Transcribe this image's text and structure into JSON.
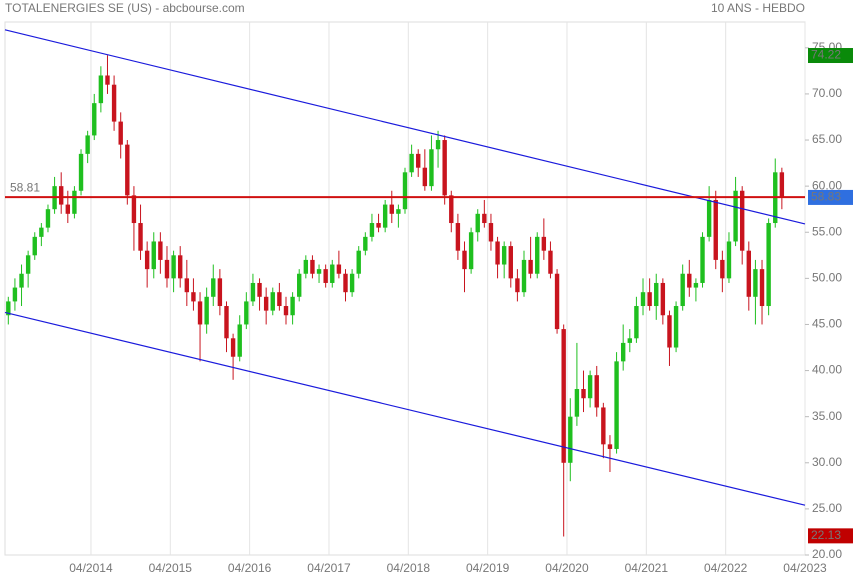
{
  "chart_data": {
    "type": "candlestick",
    "title": "TOTALENERGIES SE (US) - abcbourse.com",
    "subtitle": "10 ANS - HEBDO",
    "xlim": [
      "03/2013",
      "04/2023"
    ],
    "xticks": [
      "04/2014",
      "04/2015",
      "04/2016",
      "04/2017",
      "04/2018",
      "04/2019",
      "04/2020",
      "04/2021",
      "04/2022",
      "04/2023"
    ],
    "ylim": [
      20,
      77.8
    ],
    "yticks": [
      {
        "value": 20,
        "label": "20.00"
      },
      {
        "value": 25,
        "label": "25.00"
      },
      {
        "value": 30,
        "label": "30.00"
      },
      {
        "value": 35,
        "label": "35.00"
      },
      {
        "value": 40,
        "label": "40.00"
      },
      {
        "value": 45,
        "label": "45.00"
      },
      {
        "value": 50,
        "label": "50.00"
      },
      {
        "value": 55,
        "label": "55.00"
      },
      {
        "value": 60,
        "label": "60.00"
      },
      {
        "value": 65,
        "label": "65.00"
      },
      {
        "value": 70,
        "label": "70.00"
      },
      {
        "value": 75,
        "label": "75.00"
      }
    ],
    "grid": true,
    "up_color": "#1fbf1f",
    "down_color": "#c8141e",
    "x": [
      "03/2013",
      "04/2013",
      "05/2013",
      "06/2013",
      "07/2013",
      "08/2013",
      "09/2013",
      "10/2013",
      "11/2013",
      "12/2013",
      "01/2014",
      "02/2014",
      "03/2014",
      "04/2014",
      "05/2014",
      "06/2014",
      "07/2014",
      "08/2014",
      "09/2014",
      "10/2014",
      "11/2014",
      "12/2014",
      "01/2015",
      "02/2015",
      "03/2015",
      "04/2015",
      "05/2015",
      "06/2015",
      "07/2015",
      "08/2015",
      "09/2015",
      "10/2015",
      "11/2015",
      "12/2015",
      "01/2016",
      "02/2016",
      "03/2016",
      "04/2016",
      "05/2016",
      "06/2016",
      "07/2016",
      "08/2016",
      "09/2016",
      "10/2016",
      "11/2016",
      "12/2016",
      "01/2017",
      "02/2017",
      "03/2017",
      "04/2017",
      "05/2017",
      "06/2017",
      "07/2017",
      "08/2017",
      "09/2017",
      "10/2017",
      "11/2017",
      "12/2017",
      "01/2018",
      "02/2018",
      "03/2018",
      "04/2018",
      "05/2018",
      "06/2018",
      "07/2018",
      "08/2018",
      "09/2018",
      "10/2018",
      "11/2018",
      "12/2018",
      "01/2019",
      "02/2019",
      "03/2019",
      "04/2019",
      "05/2019",
      "06/2019",
      "07/2019",
      "08/2019",
      "09/2019",
      "10/2019",
      "11/2019",
      "12/2019",
      "01/2020",
      "02/2020",
      "03/2020",
      "04/2020",
      "05/2020",
      "06/2020",
      "07/2020",
      "08/2020",
      "09/2020",
      "10/2020",
      "11/2020",
      "12/2020",
      "01/2021",
      "02/2021",
      "03/2021",
      "04/2021",
      "05/2021",
      "06/2021",
      "07/2021",
      "08/2021",
      "09/2021",
      "10/2021",
      "11/2021",
      "12/2021",
      "01/2022",
      "02/2022",
      "03/2022",
      "04/2022",
      "05/2022",
      "06/2022",
      "07/2022",
      "08/2022",
      "09/2022",
      "10/2022",
      "11/2022",
      "12/2022"
    ],
    "open": [
      46,
      47.5,
      49,
      50.5,
      52.5,
      54.5,
      55.5,
      57.5,
      60,
      58,
      57,
      59.5,
      63.5,
      65.5,
      69,
      72,
      71,
      67,
      64.5,
      59,
      56,
      53,
      51,
      54,
      52,
      50,
      52.5,
      50,
      48.5,
      47.5,
      45,
      48,
      50,
      47,
      43.5,
      41.5,
      45,
      47.5,
      49.5,
      48,
      46.5,
      48.5,
      47,
      46,
      48,
      50.5,
      52,
      50.5,
      51,
      49.5,
      51.5,
      50.5,
      48.5,
      50.5,
      53,
      54.5,
      56,
      55.5,
      58,
      57,
      57.5,
      61.5,
      63.5,
      62,
      60,
      64,
      65,
      59,
      56,
      53,
      51,
      55,
      57,
      56,
      54,
      51.5,
      53.5,
      50,
      48.5,
      52,
      50.5,
      54.5,
      53,
      50.5,
      44.5,
      30,
      35,
      38,
      37,
      39.5,
      36,
      32,
      31.5,
      41,
      43,
      43.5,
      47,
      48.5,
      47,
      49.5,
      46,
      42.5,
      47,
      50.5,
      49,
      49.5,
      54.5,
      58.5,
      52,
      50,
      54,
      59.5,
      53,
      48,
      51,
      47,
      56,
      61.5
    ],
    "high": [
      48,
      50,
      51.5,
      53,
      55,
      56,
      58,
      61,
      61.5,
      59.5,
      60,
      64,
      66,
      70,
      73,
      74.2,
      72,
      68,
      65,
      60,
      58,
      54,
      55,
      55,
      53.5,
      53,
      53.5,
      52,
      50,
      48.5,
      49,
      51.5,
      51,
      47.5,
      44,
      46,
      48.5,
      50.5,
      50,
      49,
      49,
      49.5,
      48,
      48.5,
      51,
      52.5,
      52.5,
      51.5,
      51.5,
      52,
      53,
      51,
      51,
      53.5,
      55,
      57,
      57,
      58.5,
      59.5,
      58,
      62,
      64.5,
      64,
      64,
      65.5,
      66,
      65.5,
      59.5,
      57,
      54,
      55.5,
      57.5,
      58.5,
      57,
      54.5,
      54,
      54,
      51,
      53,
      54.5,
      55,
      56.5,
      54,
      51,
      45,
      37,
      43,
      40,
      40,
      40.5,
      36.5,
      33,
      42,
      45,
      44.5,
      48,
      50,
      50,
      50.5,
      50,
      46.5,
      47.5,
      51.5,
      52,
      50,
      55,
      60,
      59.5,
      53,
      55,
      61,
      60,
      54,
      52,
      52,
      56.5,
      63,
      62
    ],
    "low": [
      45,
      46.5,
      47,
      49,
      52,
      53.5,
      55,
      57,
      57,
      56,
      56.5,
      59,
      62.5,
      65,
      68,
      70,
      66,
      63,
      58,
      53,
      52,
      49,
      50,
      50.5,
      49,
      48.5,
      49,
      47,
      46.5,
      41,
      44,
      47,
      46,
      42,
      39,
      41,
      44.5,
      47,
      46.5,
      45,
      46,
      46.5,
      45,
      45,
      47.5,
      50,
      50,
      49.5,
      49,
      49,
      50,
      47.5,
      48,
      50,
      52.5,
      54,
      55,
      55,
      56,
      55.5,
      57,
      61,
      61,
      59.5,
      59.5,
      62,
      58,
      55,
      52,
      48.5,
      50.5,
      54,
      55.5,
      53,
      50,
      50,
      49,
      47.5,
      48,
      50,
      50,
      52,
      50,
      44,
      22,
      28,
      34,
      35.5,
      36,
      35,
      30.5,
      29,
      31,
      40,
      42,
      43,
      46,
      46.5,
      45.5,
      45,
      40.5,
      42,
      46.5,
      48,
      47.5,
      49,
      54,
      51,
      48.5,
      49.5,
      53.5,
      51.5,
      46.5,
      45,
      45,
      46,
      55.5,
      57.5
    ],
    "close": [
      47.5,
      49,
      50.5,
      52.5,
      54.5,
      55.5,
      57.5,
      60,
      58,
      57,
      59.5,
      63.5,
      65.5,
      69,
      72,
      71,
      67,
      64.5,
      59,
      56,
      53,
      51,
      54,
      52,
      50,
      52.5,
      50,
      48.5,
      47.5,
      45,
      48,
      50,
      47,
      43.5,
      41.5,
      45,
      47.5,
      49.5,
      48,
      46.5,
      48.5,
      47,
      46,
      48,
      50.5,
      52,
      50.5,
      51,
      49.5,
      51.5,
      50.5,
      48.5,
      50.5,
      53,
      54.5,
      56,
      55.5,
      58,
      57,
      57.5,
      61.5,
      63.5,
      62,
      60,
      64,
      65,
      59,
      56,
      53,
      51,
      55,
      57,
      56,
      54,
      51.5,
      53.5,
      50,
      48.5,
      52,
      50.5,
      54.5,
      53,
      50.5,
      44.5,
      30,
      35,
      38,
      37,
      39.5,
      36,
      32,
      31.5,
      41,
      43,
      43.5,
      47,
      48.5,
      47,
      49.5,
      46,
      42.5,
      47,
      50.5,
      49,
      49.5,
      54.5,
      58.5,
      52,
      50,
      54,
      59.5,
      53,
      48,
      51,
      47,
      56,
      61.5,
      58.83
    ],
    "trendlines": [
      {
        "color": "#1a1adc",
        "x": [
          "03/2013",
          "04/2023"
        ],
        "y": [
          76.95,
          55.9
        ]
      },
      {
        "color": "#1a1adc",
        "x": [
          "03/2013",
          "04/2023"
        ],
        "y": [
          46.3,
          25.4
        ]
      }
    ],
    "hline": {
      "value": 58.81,
      "color": "#d01010"
    },
    "price_tags": [
      {
        "value": 74.22,
        "color": "#0a8a0a"
      },
      {
        "value": 58.83,
        "color": "#2f6fe0"
      },
      {
        "value": 22.13,
        "color": "#c00000"
      }
    ]
  }
}
